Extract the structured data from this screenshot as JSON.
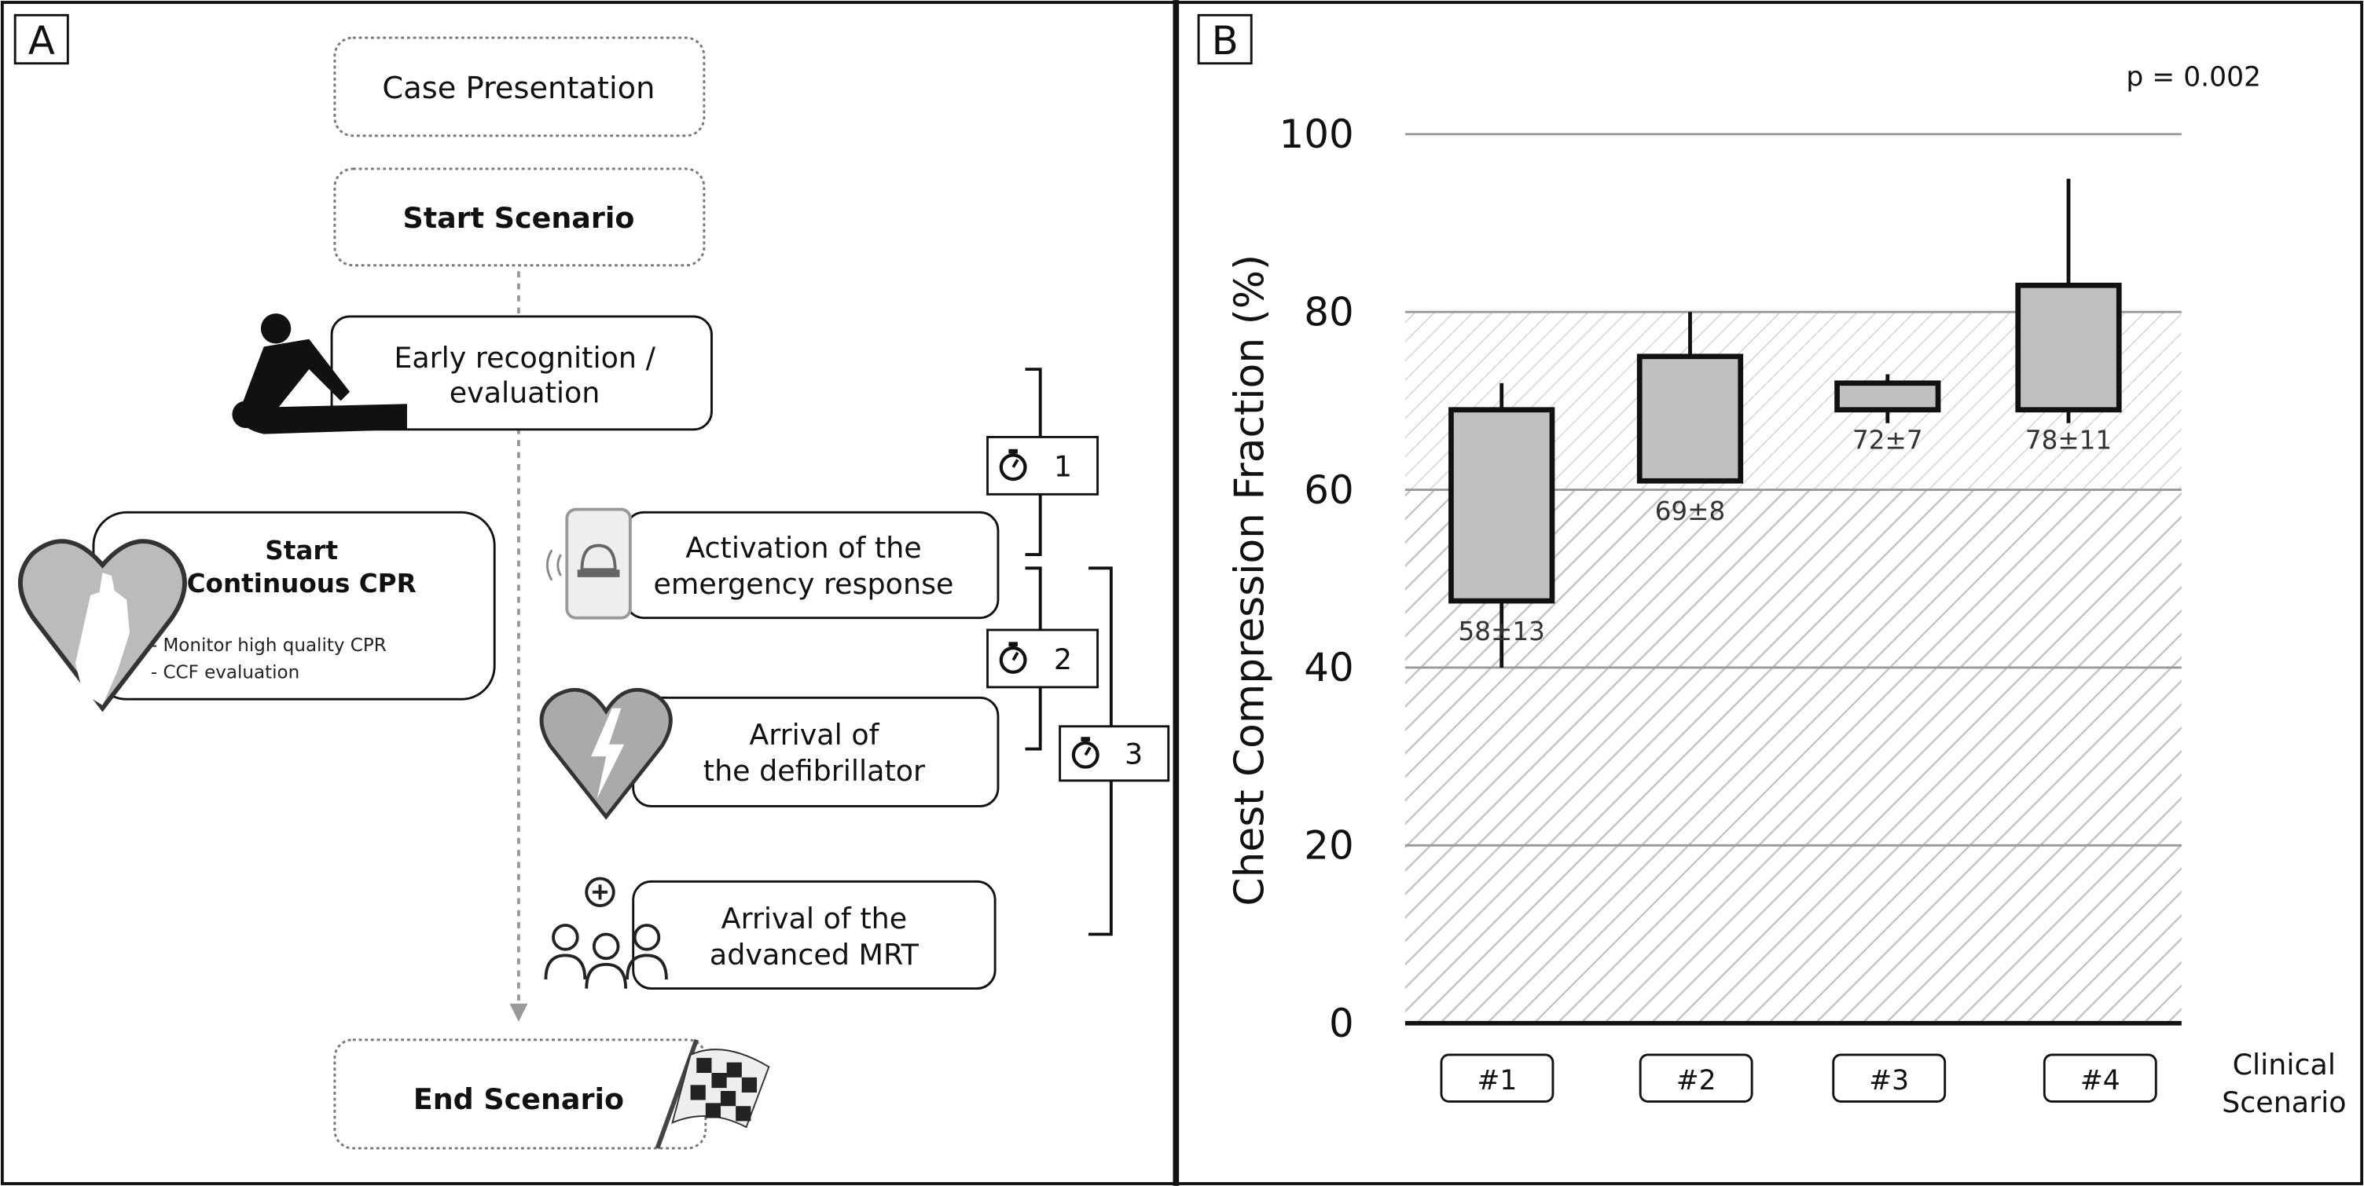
{
  "panel_a": {
    "label": "A",
    "steps": {
      "case_presentation": "Case Presentation",
      "start_scenario": "Start Scenario",
      "early_recognition": [
        "Early recognition /",
        "evaluation"
      ],
      "start_cpr": {
        "title": [
          "Start",
          "Continuous CPR"
        ],
        "bullets": [
          "- Monitor high  quality CPR",
          "- CCF  evaluation"
        ]
      },
      "activation": [
        "Activation of the",
        "emergency response"
      ],
      "defibrillator": [
        "Arrival of",
        "the defibrillator"
      ],
      "advanced_mrt": [
        "Arrival of the",
        "advanced MRT"
      ],
      "end_scenario": "End Scenario"
    },
    "timers": [
      "1",
      "2",
      "3"
    ],
    "icons": [
      "cpr-person-icon",
      "heart-hand-icon",
      "phone-alarm-icon",
      "heart-lightning-icon",
      "medical-team-icon",
      "checkered-flag-icon",
      "stopwatch-icon"
    ]
  },
  "panel_b": {
    "label": "B",
    "p_value": "p = 0.002",
    "chart_data": {
      "type": "box",
      "ylabel": "Chest Compression Fraction (%)",
      "xlabel": [
        "Clinical",
        "Scenario"
      ],
      "ylim": [
        0,
        100
      ],
      "yticks": [
        "0",
        "20",
        "40",
        "60",
        "80",
        "100"
      ],
      "grid": true,
      "shaded_bands": [
        {
          "from": 60,
          "to": 80,
          "pattern": "light-hatch"
        },
        {
          "from": 0,
          "to": 60,
          "pattern": "dense-hatch"
        }
      ],
      "categories": [
        "#1",
        "#2",
        "#3",
        "#4"
      ],
      "boxes": [
        {
          "whisker_low": 40,
          "q1": 47.5,
          "q3": 69,
          "whisker_high": 72,
          "label": "58±13"
        },
        {
          "whisker_low": 61,
          "q1": 61,
          "q3": 75,
          "whisker_high": 80,
          "label": "69±8"
        },
        {
          "whisker_low": 67.5,
          "q1": 69,
          "q3": 72,
          "whisker_high": 73,
          "label": "72±7"
        },
        {
          "whisker_low": 67.5,
          "q1": 69,
          "q3": 83,
          "whisker_high": 95,
          "label": "78±11"
        }
      ],
      "box_color": "#c0c0c0"
    }
  }
}
